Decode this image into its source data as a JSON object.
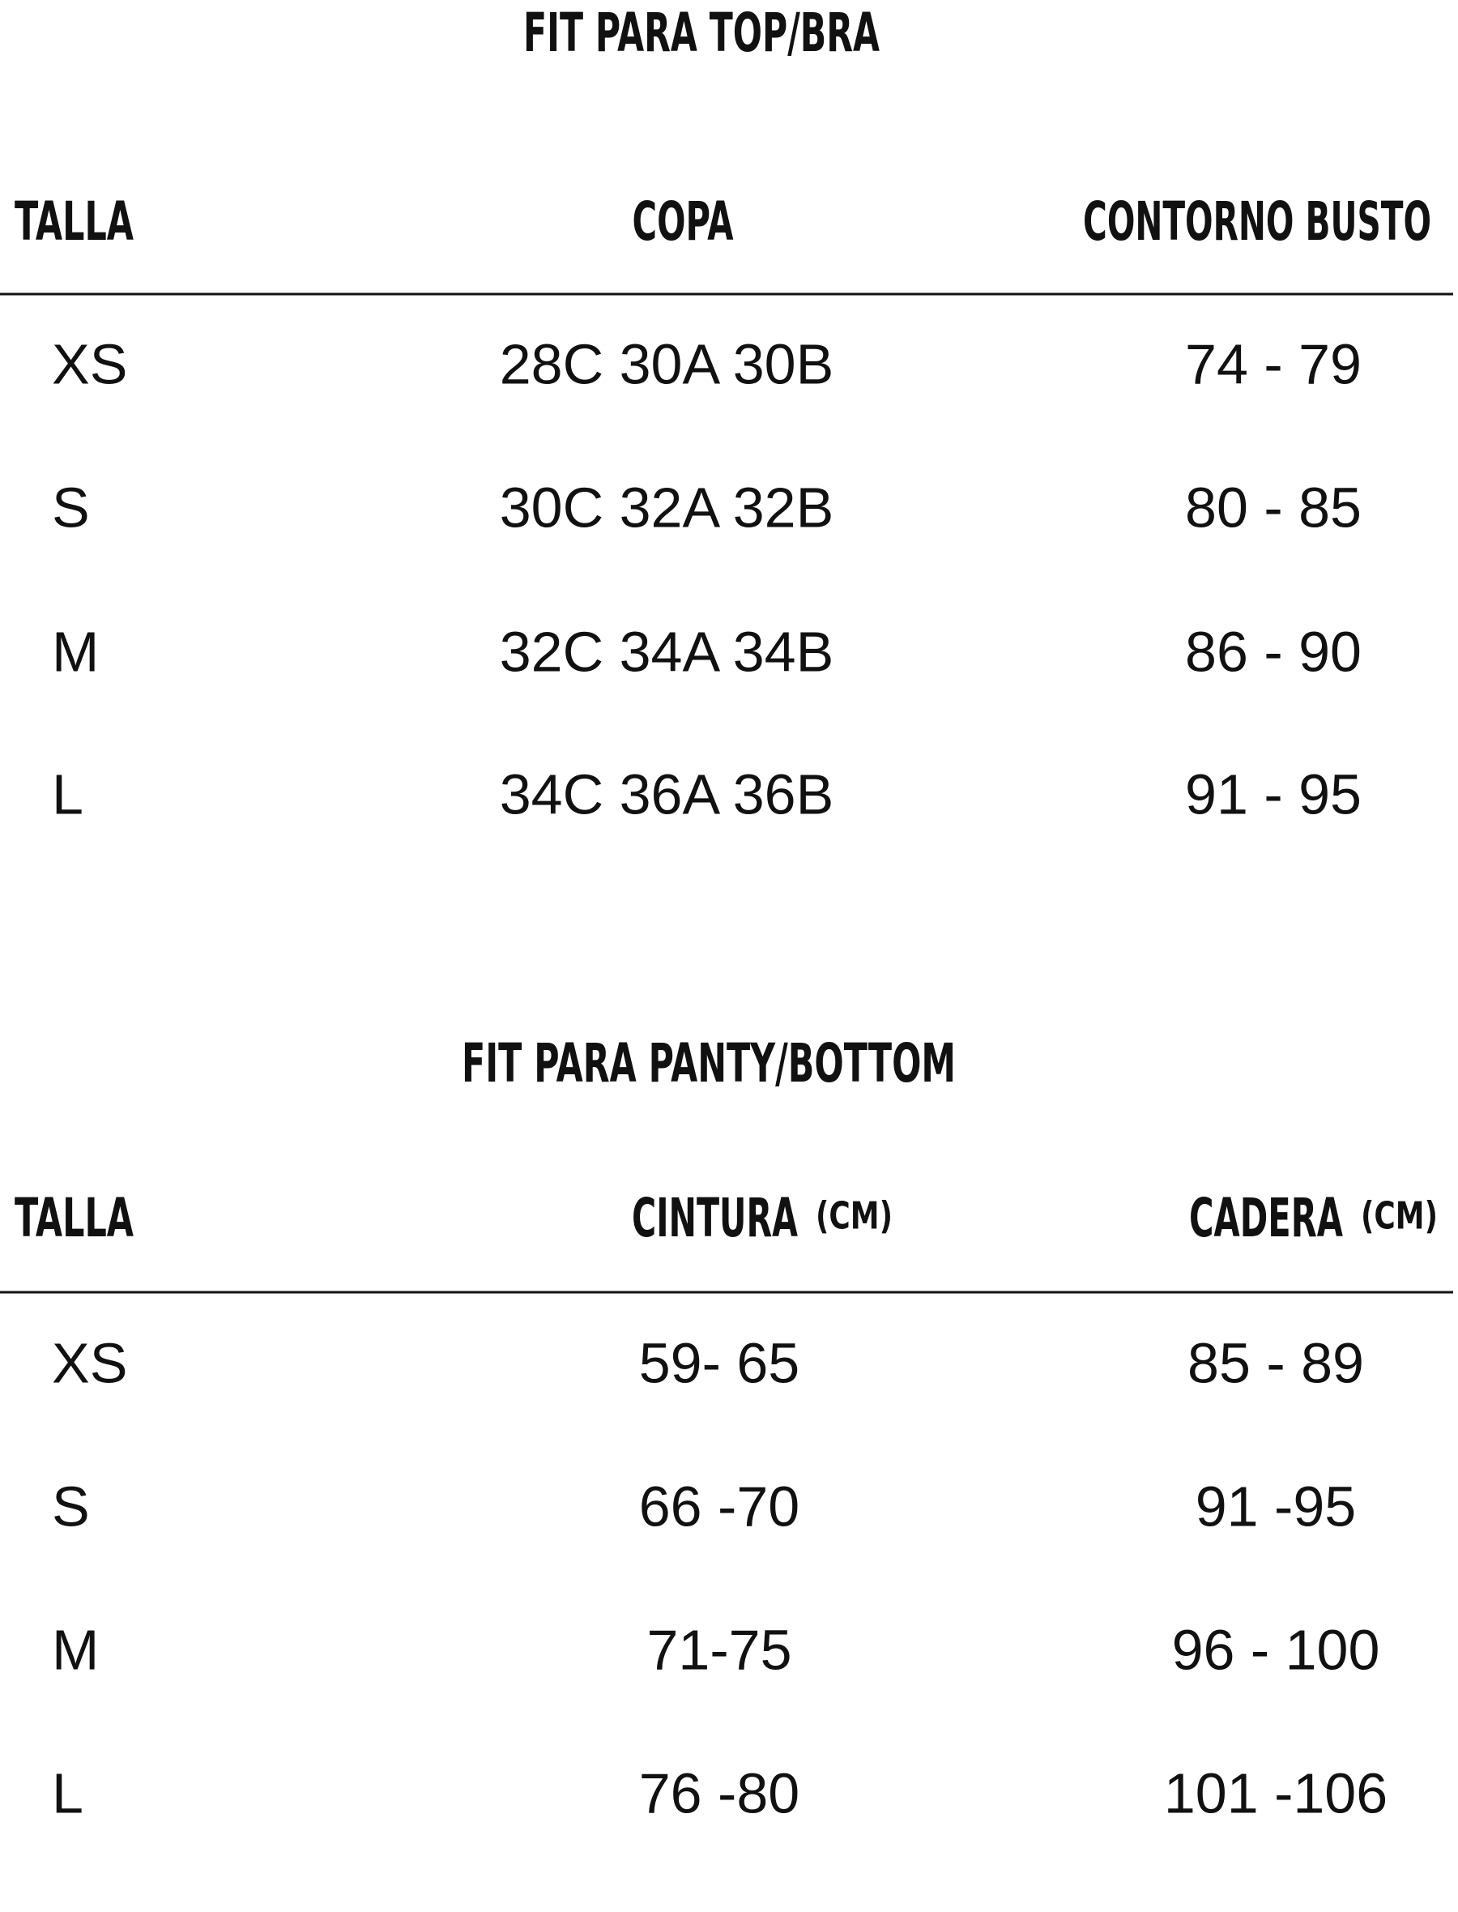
{
  "sections": [
    {
      "title": "FIT PARA TOP/BRA",
      "headers": [
        {
          "label": "TALLA"
        },
        {
          "label": "COPA"
        },
        {
          "label": "CONTORNO BUSTO"
        }
      ],
      "rows": [
        [
          "XS",
          "28C 30A 30B",
          "74 - 79"
        ],
        [
          "S",
          "30C 32A 32B",
          "80 - 85"
        ],
        [
          "M",
          "32C 34A 34B",
          "86 - 90"
        ],
        [
          "L",
          "34C 36A 36B",
          "91 - 95"
        ]
      ]
    },
    {
      "title": "FIT PARA PANTY/BOTTOM",
      "headers": [
        {
          "label": "TALLA"
        },
        {
          "label": "CINTURA",
          "unit": "(CM)"
        },
        {
          "label": "CADERA",
          "unit": "(CM)"
        }
      ],
      "rows": [
        [
          "XS",
          "59- 65",
          "85 - 89"
        ],
        [
          "S",
          "66 -70",
          "91 -95"
        ],
        [
          "M",
          "71-75",
          "96 - 100"
        ],
        [
          "L",
          "76 -80",
          "101 -106"
        ]
      ]
    }
  ]
}
